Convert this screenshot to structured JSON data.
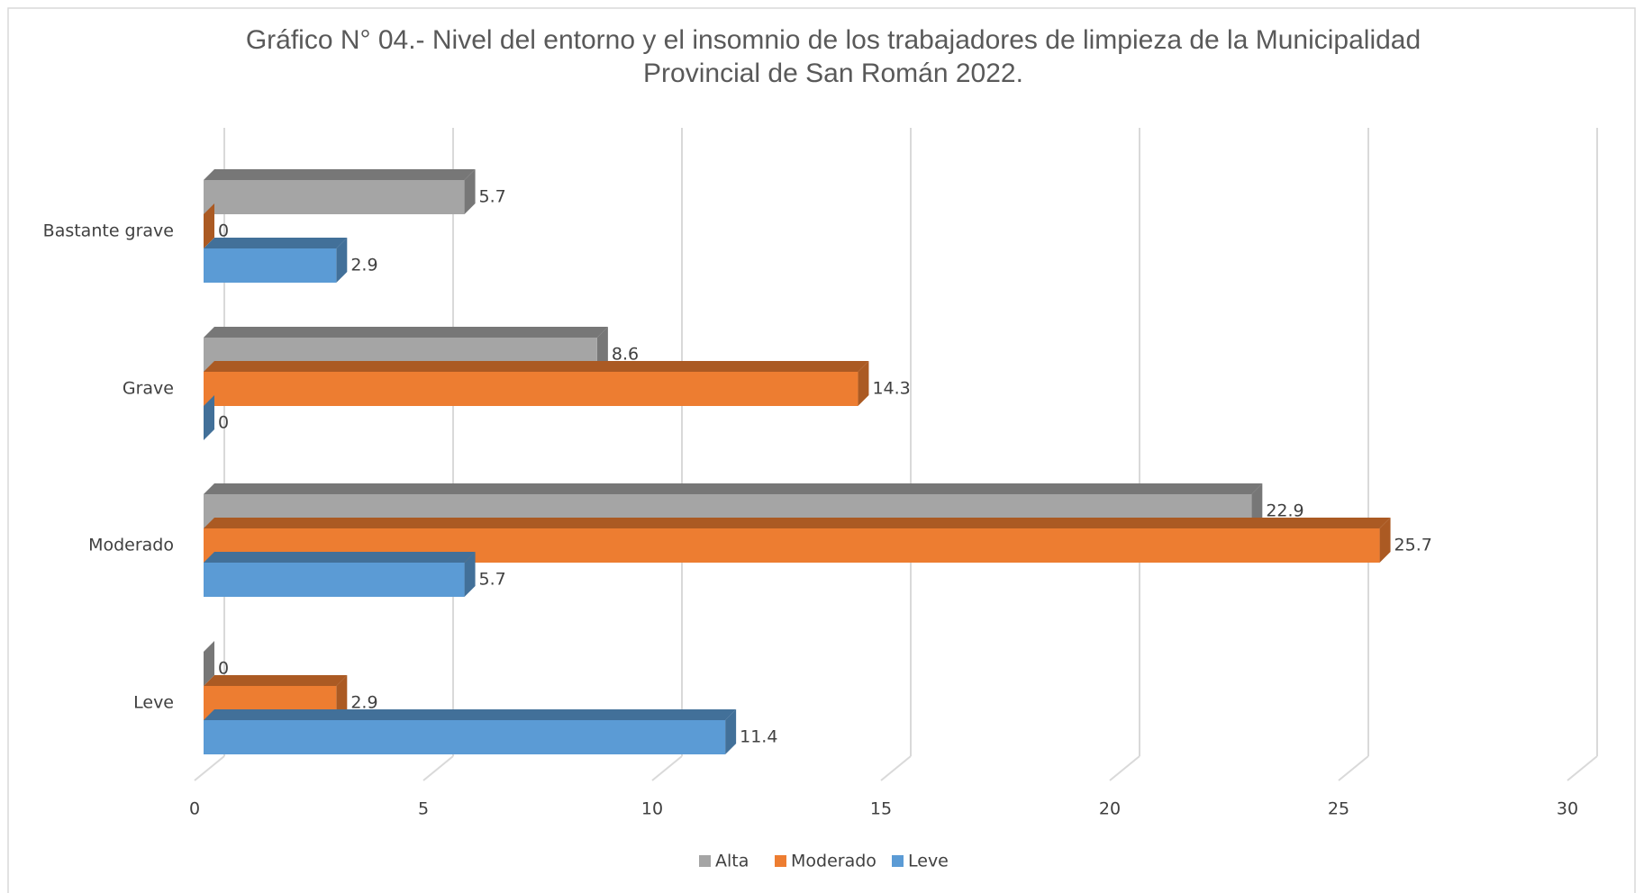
{
  "chart_data": {
    "type": "bar3d_horizontal",
    "title": "Gráfico N° 04.- Nivel del entorno y el insomnio de los trabajadores de limpieza de la Municipalidad Provincial de San Román 2022.",
    "categories": [
      "Bastante grave",
      "Grave",
      "Moderado",
      "Leve"
    ],
    "series": [
      {
        "name": "Alta",
        "color": "#a5a5a5",
        "values": [
          5.7,
          8.6,
          22.9,
          0
        ]
      },
      {
        "name": "Moderado",
        "color": "#ed7d31",
        "values": [
          0,
          14.3,
          25.7,
          2.9
        ]
      },
      {
        "name": "Leve",
        "color": "#5b9bd5",
        "values": [
          2.9,
          0,
          5.7,
          11.4
        ]
      }
    ],
    "xlim": [
      0,
      30
    ],
    "xticks": [
      0,
      5,
      10,
      15,
      20,
      25,
      30
    ],
    "grid": true,
    "legend": "bottom"
  }
}
